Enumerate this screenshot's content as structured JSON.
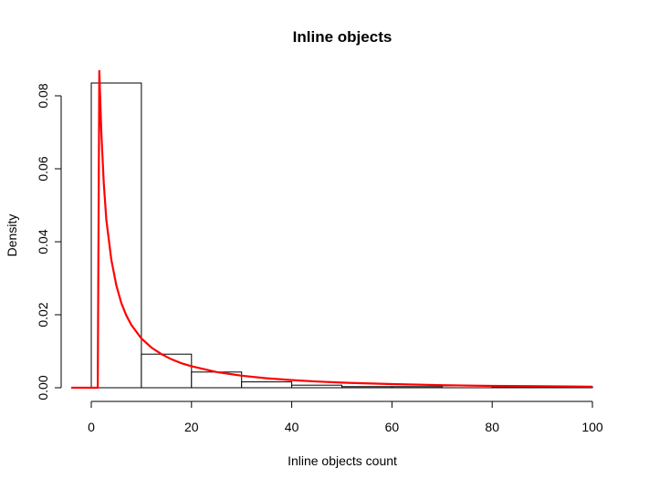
{
  "chart_data": {
    "type": "bar",
    "title": "Inline objects",
    "xlabel": "Inline objects count",
    "ylabel": "Density",
    "xlim": [
      0,
      100
    ],
    "ylim": [
      0,
      0.083
    ],
    "x_ticks": [
      0,
      20,
      40,
      60,
      80,
      100
    ],
    "y_ticks": [
      0.0,
      0.02,
      0.04,
      0.06,
      0.08
    ],
    "y_tick_labels": [
      "0.00",
      "0.02",
      "0.04",
      "0.06",
      "0.08"
    ],
    "x_tick_labels": [
      "0",
      "20",
      "40",
      "60",
      "80",
      "100"
    ],
    "bins": [
      {
        "start": 0,
        "end": 10,
        "density": 0.0835
      },
      {
        "start": 10,
        "end": 20,
        "density": 0.0092
      },
      {
        "start": 20,
        "end": 30,
        "density": 0.0043
      },
      {
        "start": 30,
        "end": 40,
        "density": 0.0016
      },
      {
        "start": 40,
        "end": 50,
        "density": 0.0007
      },
      {
        "start": 50,
        "end": 60,
        "density": 0.0003
      },
      {
        "start": 60,
        "end": 70,
        "density": 0.0003
      },
      {
        "start": 70,
        "end": 80,
        "density": 0.0005
      },
      {
        "start": 80,
        "end": 90,
        "density": 0.0001
      },
      {
        "start": 90,
        "end": 100,
        "density": 0.0003
      }
    ],
    "fitted_curve": {
      "color": "#ff0000",
      "points": [
        [
          -4,
          0
        ],
        [
          1.3,
          0
        ],
        [
          1.6,
          0.087
        ],
        [
          2,
          0.07
        ],
        [
          2.5,
          0.056
        ],
        [
          3,
          0.046
        ],
        [
          4,
          0.035
        ],
        [
          5,
          0.028
        ],
        [
          6,
          0.0232
        ],
        [
          7,
          0.0198
        ],
        [
          8,
          0.0172
        ],
        [
          10,
          0.0135
        ],
        [
          12,
          0.011
        ],
        [
          14,
          0.0092
        ],
        [
          16,
          0.0078
        ],
        [
          18,
          0.0067
        ],
        [
          20,
          0.0059
        ],
        [
          25,
          0.0043
        ],
        [
          30,
          0.0033
        ],
        [
          35,
          0.0026
        ],
        [
          40,
          0.0021
        ],
        [
          45,
          0.0017
        ],
        [
          50,
          0.0014
        ],
        [
          60,
          0.001
        ],
        [
          70,
          0.0007
        ],
        [
          80,
          0.0005
        ],
        [
          90,
          0.0004
        ],
        [
          100,
          0.0003
        ]
      ]
    },
    "grid": false,
    "legend": "none"
  }
}
